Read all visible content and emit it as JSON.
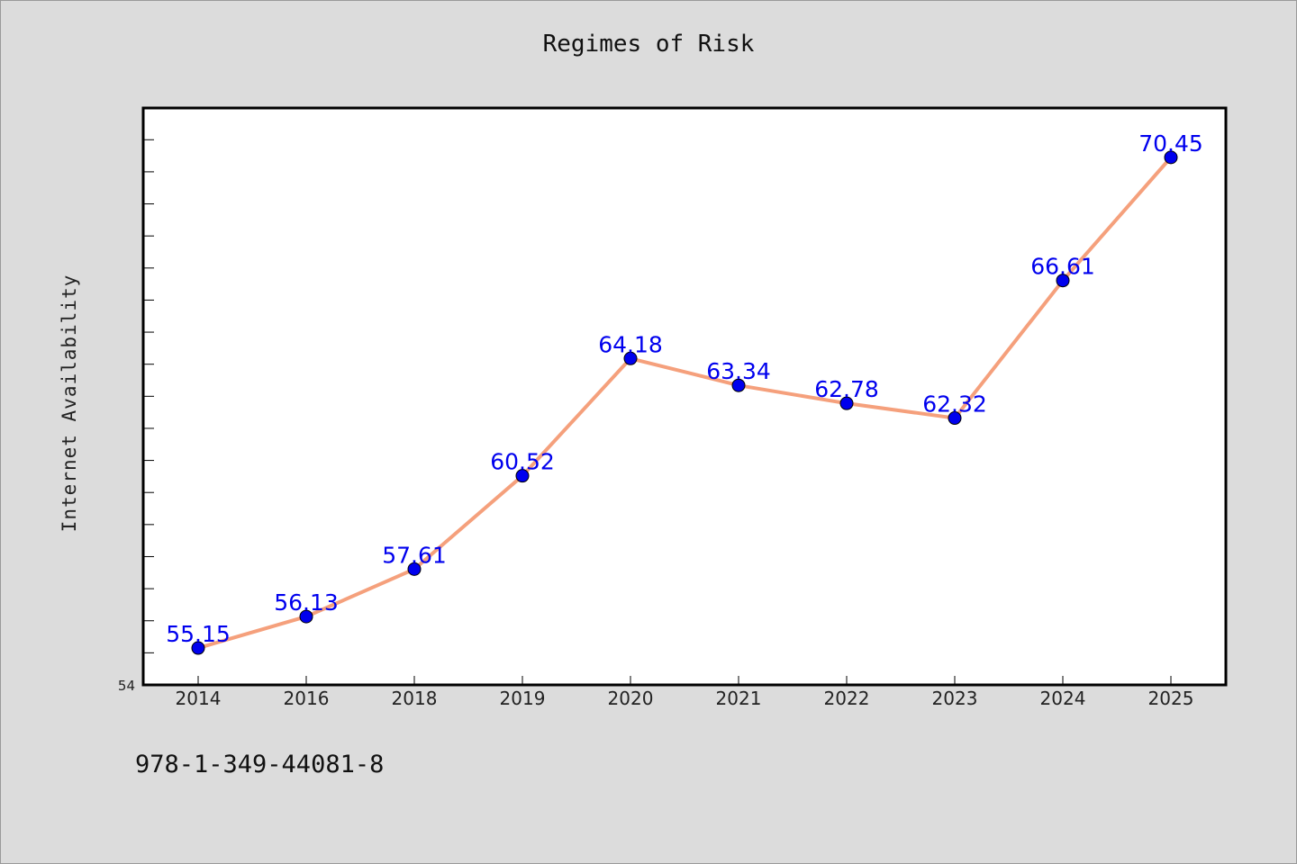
{
  "chart_data": {
    "type": "line",
    "title": "Regimes of Risk",
    "xlabel": "",
    "ylabel": "Internet Availability",
    "categories": [
      "2014",
      "2016",
      "2018",
      "2019",
      "2020",
      "2021",
      "2022",
      "2023",
      "2024",
      "2025"
    ],
    "series": [
      {
        "values": [
          55.15,
          56.13,
          57.61,
          60.52,
          64.18,
          63.34,
          62.78,
          62.32,
          66.61,
          70.45
        ]
      }
    ],
    "data_labels": [
      "55.15",
      "56.13",
      "57.61",
      "60.52",
      "64.18",
      "63.34",
      "62.78",
      "62.32",
      "66.61",
      "70.45"
    ],
    "y_tick_labels": [
      "54"
    ],
    "ylim": [
      54,
      71.99
    ],
    "y_minor_tick_step": 1,
    "grid": false,
    "legend": "none",
    "line_color": "#f5a07c",
    "marker_color": "#0000ee",
    "label_color": "#0000ee"
  },
  "footnote": "978-1-349-44081-8"
}
